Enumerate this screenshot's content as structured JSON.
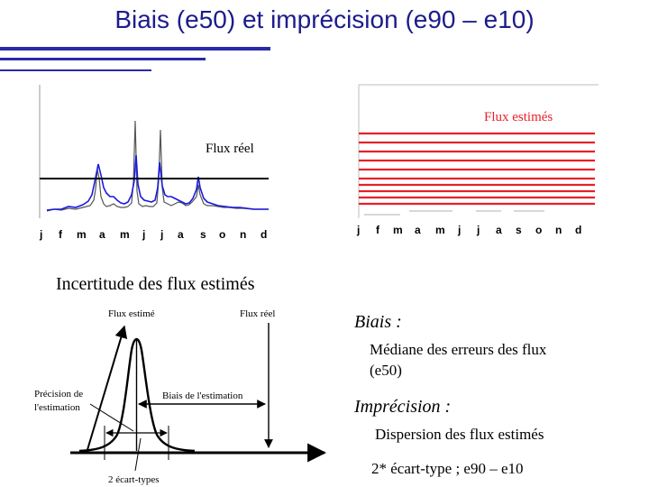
{
  "title": "Biais (e50) et imprécision (e90 – e10)",
  "months": [
    "j",
    "f",
    "m",
    "a",
    "m",
    "j",
    "j",
    "a",
    "s",
    "o",
    "n",
    "d"
  ],
  "left_chart": {
    "label": "Flux réel"
  },
  "right_chart": {
    "label": "Flux estimés",
    "line_color": "#e8202a"
  },
  "diagram": {
    "heading": "Incertitude des flux estimés",
    "flux_estime": "Flux estimé",
    "flux_reel": "Flux réel",
    "precision_line1": "Précision de",
    "precision_line2": "l'estimation",
    "biais_label": "Biais de l'estimation",
    "ecart_label": "2 écart-types"
  },
  "definitions": {
    "biais_title": "Biais :",
    "biais_line1": "Médiane des erreurs des flux",
    "biais_line2": "(e50)",
    "imprecision_title": "Imprécision :",
    "imprecision_line1": "Dispersion des flux estimés",
    "imprecision_line2": "2* écart-type ; e90 – e10"
  },
  "colors": {
    "title": "#1c1c8c",
    "rules": "#2a2aa8",
    "flux_blue": "#1a1ae0",
    "flux_red": "#e8202a"
  }
}
